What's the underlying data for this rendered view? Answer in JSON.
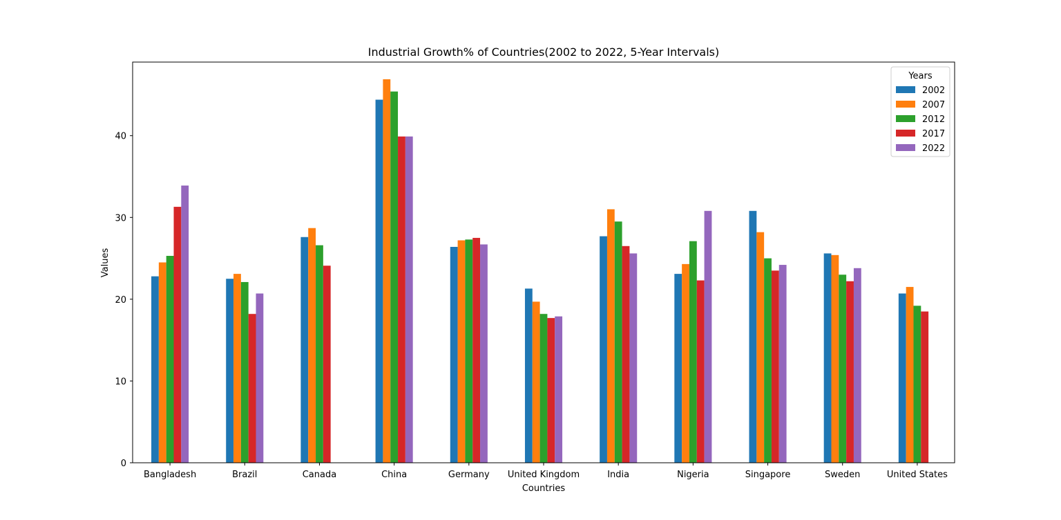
{
  "chart_data": {
    "type": "bar",
    "title": "Industrial Growth% of Countries(2002 to 2022, 5-Year Intervals)",
    "xlabel": "Countries",
    "ylabel": "Values",
    "ylim": [
      0,
      49
    ],
    "yticks": [
      0,
      10,
      20,
      30,
      40
    ],
    "grid": false,
    "legend": {
      "title": "Years",
      "position": "top-right"
    },
    "categories": [
      "Bangladesh",
      "Brazil",
      "Canada",
      "China",
      "Germany",
      "United Kingdom",
      "India",
      "Nigeria",
      "Singapore",
      "Sweden",
      "United States"
    ],
    "series": [
      {
        "name": "2002",
        "color": "#1f77b4",
        "values": [
          22.8,
          22.5,
          27.6,
          44.4,
          26.4,
          21.3,
          27.7,
          23.1,
          30.8,
          25.6,
          20.7
        ]
      },
      {
        "name": "2007",
        "color": "#ff7f0e",
        "values": [
          24.5,
          23.1,
          28.7,
          46.9,
          27.2,
          19.7,
          31.0,
          24.3,
          28.2,
          25.4,
          21.5
        ]
      },
      {
        "name": "2012",
        "color": "#2ca02c",
        "values": [
          25.3,
          22.1,
          26.6,
          45.4,
          27.3,
          18.2,
          29.5,
          27.1,
          25.0,
          23.0,
          19.2
        ]
      },
      {
        "name": "2017",
        "color": "#d62728",
        "values": [
          31.3,
          18.2,
          24.1,
          39.9,
          27.5,
          17.7,
          26.5,
          22.3,
          23.5,
          22.2,
          18.5
        ]
      },
      {
        "name": "2022",
        "color": "#9467bd",
        "values": [
          33.9,
          20.7,
          null,
          39.9,
          26.7,
          17.9,
          25.6,
          30.8,
          24.2,
          23.8,
          null
        ]
      }
    ]
  }
}
